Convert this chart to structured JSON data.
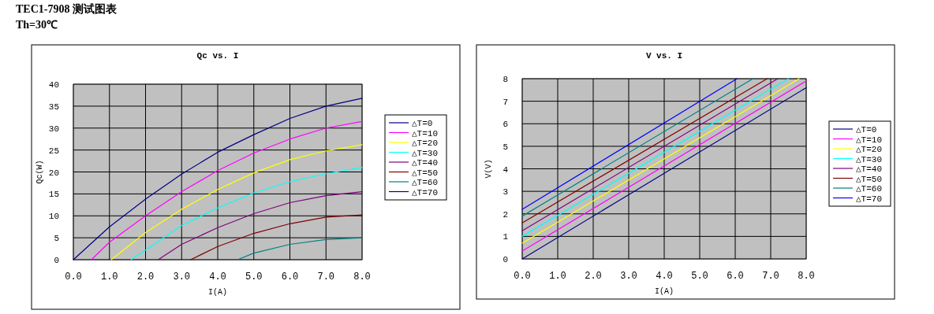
{
  "chart_data": [
    {
      "type": "line",
      "title": "Qc vs. I",
      "xlabel": "I(A)",
      "ylabel": "Qc(W)",
      "annotations": [
        "TEC1-7908 测试图表",
        "Th=30℃"
      ],
      "xlim": [
        0,
        8
      ],
      "ylim": [
        0,
        40
      ],
      "xticks": [
        {
          "value": 0,
          "label": "0.0"
        },
        {
          "value": 1,
          "label": "1.0"
        },
        {
          "value": 2,
          "label": "2.0"
        },
        {
          "value": 3,
          "label": "3.0"
        },
        {
          "value": 4,
          "label": "4.0"
        },
        {
          "value": 5,
          "label": "5.0"
        },
        {
          "value": 6,
          "label": "6.0"
        },
        {
          "value": 7,
          "label": "7.0"
        },
        {
          "value": 8,
          "label": "8.0"
        }
      ],
      "yticks": [
        0,
        5,
        10,
        15,
        20,
        25,
        30,
        35,
        40
      ],
      "grid": true,
      "legend": "right",
      "series": [
        {
          "name": "△T=0",
          "color": "#000080",
          "x": [
            0,
            1,
            2,
            3,
            4,
            5,
            6,
            7,
            8
          ],
          "values": [
            0,
            7.5,
            13.8,
            19.5,
            24.5,
            28.5,
            32.2,
            35,
            36.8
          ]
        },
        {
          "name": "△T=10",
          "color": "#ff00ff",
          "x": [
            0.5,
            1,
            2,
            3,
            4,
            5,
            6,
            7,
            8
          ],
          "values": [
            0,
            4,
            10,
            15.5,
            20.3,
            24.3,
            27.5,
            30,
            31.5
          ]
        },
        {
          "name": "△T=20",
          "color": "#ffff00",
          "x": [
            1.05,
            2,
            3,
            4,
            5,
            6,
            7,
            8
          ],
          "values": [
            0,
            6.2,
            11.5,
            16,
            19.8,
            22.8,
            24.8,
            26.2
          ]
        },
        {
          "name": "△T=30",
          "color": "#00ffff",
          "x": [
            1.6,
            2,
            3,
            4,
            5,
            6,
            7,
            8
          ],
          "values": [
            0,
            2.2,
            7.8,
            11.8,
            15.2,
            17.8,
            19.6,
            21
          ]
        },
        {
          "name": "△T=40",
          "color": "#800080",
          "x": [
            2.35,
            3,
            4,
            5,
            6,
            7,
            8
          ],
          "values": [
            0,
            3.5,
            7.3,
            10.5,
            13,
            14.6,
            15.5
          ]
        },
        {
          "name": "△T=50",
          "color": "#800000",
          "x": [
            3.25,
            4,
            5,
            6,
            7,
            8
          ],
          "values": [
            0,
            3,
            6,
            8.2,
            9.7,
            10.2
          ]
        },
        {
          "name": "△T=60",
          "color": "#008080",
          "x": [
            4.55,
            5,
            6,
            7,
            8
          ],
          "values": [
            0,
            1.5,
            3.5,
            4.6,
            5
          ]
        },
        {
          "name": "△T=70",
          "color": "#000080"
        }
      ]
    },
    {
      "type": "line",
      "title": "V vs. I",
      "xlabel": "I(A)",
      "ylabel": "V(V)",
      "xlim": [
        0,
        8
      ],
      "ylim": [
        0,
        8
      ],
      "xticks": [
        {
          "value": 0,
          "label": "0.0"
        },
        {
          "value": 1,
          "label": "1.0"
        },
        {
          "value": 2,
          "label": "2.0"
        },
        {
          "value": 3,
          "label": "3.0"
        },
        {
          "value": 4,
          "label": "4.0"
        },
        {
          "value": 5,
          "label": "5.0"
        },
        {
          "value": 6,
          "label": "6.0"
        },
        {
          "value": 7,
          "label": "7.0"
        },
        {
          "value": 8,
          "label": "8.0"
        }
      ],
      "yticks": [
        0,
        1,
        2,
        3,
        4,
        5,
        6,
        7,
        8
      ],
      "grid": true,
      "legend": "right",
      "series": [
        {
          "name": "△T=0",
          "color": "#000080",
          "x": [
            0,
            8
          ],
          "values": [
            0,
            7.6
          ]
        },
        {
          "name": "△T=10",
          "color": "#ff00ff",
          "x": [
            0,
            8
          ],
          "values": [
            0.35,
            7.9
          ]
        },
        {
          "name": "△T=20",
          "color": "#ffff00",
          "x": [
            0,
            7.8
          ],
          "values": [
            0.7,
            8
          ]
        },
        {
          "name": "△T=30",
          "color": "#00ffff",
          "x": [
            0,
            7.5
          ],
          "values": [
            1.0,
            8
          ]
        },
        {
          "name": "△T=40",
          "color": "#800080",
          "x": [
            0,
            7.2
          ],
          "values": [
            1.25,
            8
          ]
        },
        {
          "name": "△T=50",
          "color": "#800000",
          "x": [
            0,
            6.9
          ],
          "values": [
            1.6,
            8
          ]
        },
        {
          "name": "△T=60",
          "color": "#008080",
          "x": [
            0,
            6.5
          ],
          "values": [
            1.9,
            8
          ]
        },
        {
          "name": "△T=70",
          "color": "#0000ff",
          "x": [
            0,
            6.05
          ],
          "values": [
            2.2,
            8
          ]
        }
      ]
    }
  ]
}
